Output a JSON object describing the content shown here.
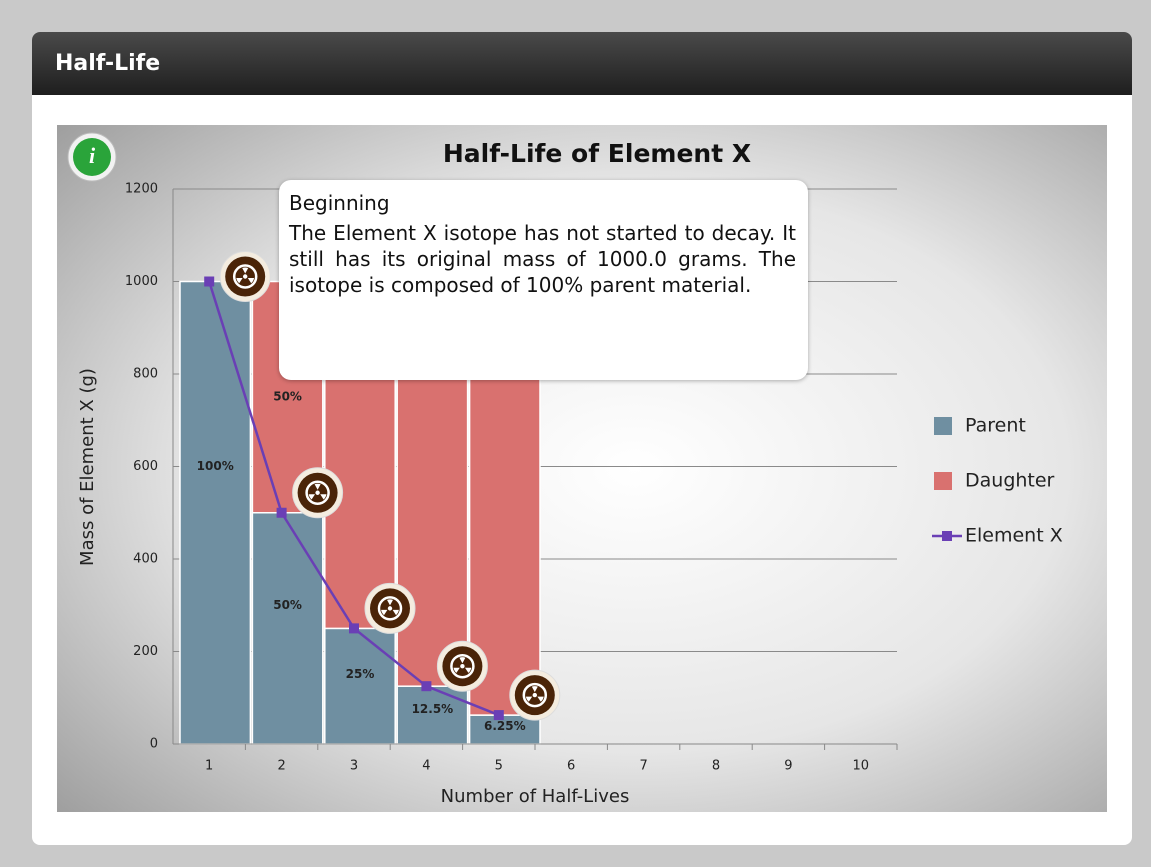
{
  "header": {
    "title": "Half-Life"
  },
  "callout": {
    "title": "Beginning",
    "text": "The Element X isotope has not started to decay. It still has its original mass of 1000.0 grams. The isotope is composed of 100% parent material."
  },
  "chart_data": {
    "type": "bar",
    "title": "Half-Life of Element X",
    "x_label": "Number of Half-Lives",
    "y_label": "Mass of Element X (g)",
    "categories": [
      1,
      2,
      3,
      4,
      5,
      6,
      7,
      8,
      9,
      10
    ],
    "series": [
      {
        "name": "Parent",
        "color": "#6f8fa1",
        "values": [
          1000,
          500,
          250,
          125,
          62.5,
          null,
          null,
          null,
          null,
          null
        ],
        "percent_labels": [
          "100%",
          "50%",
          "25%",
          "12.5%",
          "6.25%",
          null,
          null,
          null,
          null,
          null
        ]
      },
      {
        "name": "Daughter",
        "color": "#d9716f",
        "values": [
          0,
          500,
          750,
          875,
          937.5,
          null,
          null,
          null,
          null,
          null
        ],
        "percent_labels": [
          null,
          "50%",
          null,
          null,
          null,
          null,
          null,
          null,
          null,
          null
        ]
      },
      {
        "name": "Element X",
        "type": "line",
        "color": "#6a3fb5",
        "values": [
          1000,
          500,
          250,
          125,
          62.5,
          null,
          null,
          null,
          null,
          null
        ]
      }
    ],
    "ylim": [
      0,
      1200
    ],
    "yticks": [
      0,
      200,
      400,
      600,
      800,
      1000,
      1200
    ],
    "grid": true,
    "stacked": true,
    "legend": "right"
  }
}
